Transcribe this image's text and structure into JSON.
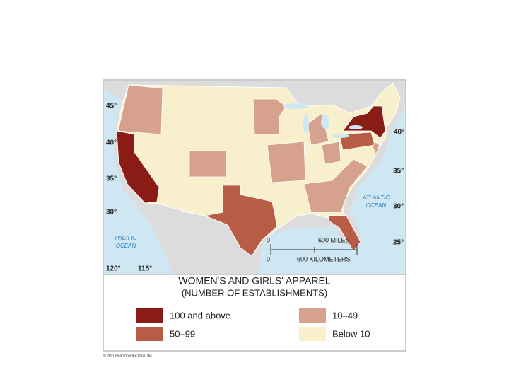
{
  "map": {
    "title": "WOMEN'S AND GIRLS' APPAREL",
    "subtitle": "(NUMBER OF ESTABLISHMENTS)",
    "legend": [
      {
        "label": "100 and above",
        "color": "#8a1c15"
      },
      {
        "label": "50–99",
        "color": "#b85c45"
      },
      {
        "label": "10–49",
        "color": "#d6a28e"
      },
      {
        "label": "Below 10",
        "color": "#f8f0cc"
      }
    ],
    "oceans": [
      {
        "lines": [
          "PACIFIC",
          "OCEAN"
        ]
      },
      {
        "lines": [
          "ATLANTIC",
          "OCEAN"
        ]
      }
    ],
    "latitudes_left": [
      "45°",
      "40°",
      "35°",
      "30°"
    ],
    "latitudes_right": [
      "40°",
      "35°",
      "30°",
      "25°"
    ],
    "longitudes": [
      "120°",
      "115°"
    ],
    "scale": {
      "miles_zero": "0",
      "miles": "600 MILES",
      "km_zero": "0",
      "km": "600 KILOMETERS"
    },
    "copyright": "© 2011 Pearson Education, Inc."
  }
}
